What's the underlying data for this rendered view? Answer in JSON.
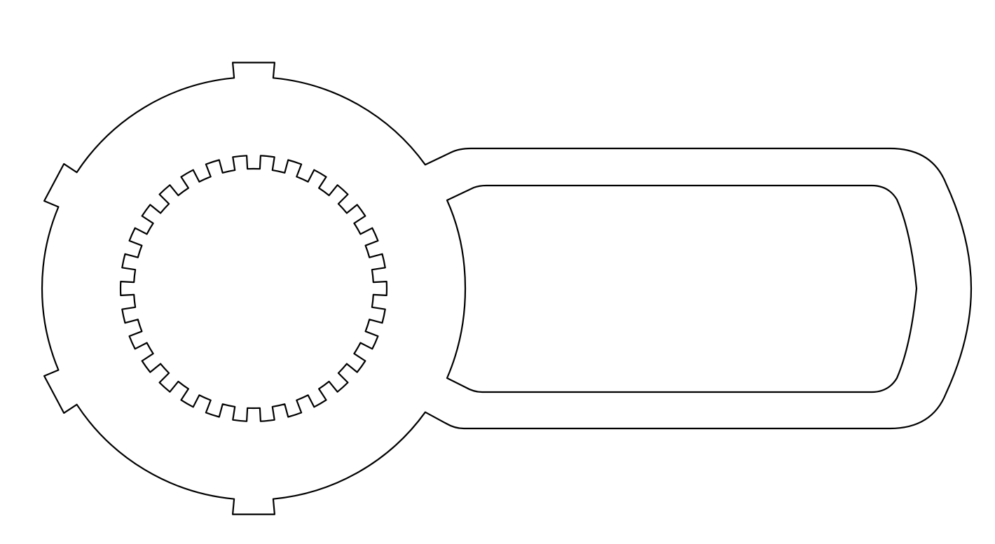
{
  "drawing": {
    "stroke_color": "#000000",
    "background_color": "#ffffff",
    "outer_tab_count": 4,
    "inner_spline_tooth_count": 30
  }
}
